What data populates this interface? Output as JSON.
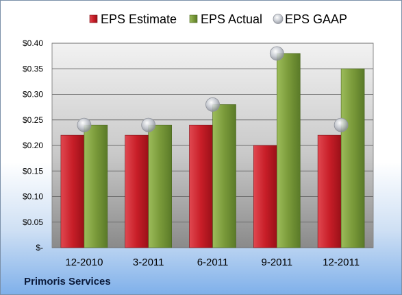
{
  "company_name": "Primoris Services",
  "colors": {
    "estimate": "#c81e28",
    "actual": "#7a9a3a",
    "gaap": "#b8bcc4",
    "plot_bg_top": "#f2f2f2",
    "plot_bg_bottom": "#8a8a8a",
    "background_bottom": "#7fb0ea"
  },
  "chart_data": {
    "type": "bar",
    "categories": [
      "12-2010",
      "3-2011",
      "6-2011",
      "9-2011",
      "12-2011"
    ],
    "series": [
      {
        "name": "EPS Estimate",
        "kind": "bar",
        "values": [
          0.22,
          0.22,
          0.24,
          0.2,
          0.22
        ]
      },
      {
        "name": "EPS Actual",
        "kind": "bar",
        "values": [
          0.24,
          0.24,
          0.28,
          0.38,
          0.35
        ]
      },
      {
        "name": "EPS GAAP",
        "kind": "marker",
        "values": [
          0.24,
          0.24,
          0.28,
          0.38,
          0.24
        ]
      }
    ],
    "y_ticks": [
      {
        "value": 0.0,
        "label": "$-"
      },
      {
        "value": 0.05,
        "label": "$0.05"
      },
      {
        "value": 0.1,
        "label": "$0.10"
      },
      {
        "value": 0.15,
        "label": "$0.15"
      },
      {
        "value": 0.2,
        "label": "$0.20"
      },
      {
        "value": 0.25,
        "label": "$0.25"
      },
      {
        "value": 0.3,
        "label": "$0.30"
      },
      {
        "value": 0.35,
        "label": "$0.35"
      },
      {
        "value": 0.4,
        "label": "$0.40"
      }
    ],
    "ylim": [
      0,
      0.4
    ],
    "grid": true,
    "legend_position": "top"
  }
}
